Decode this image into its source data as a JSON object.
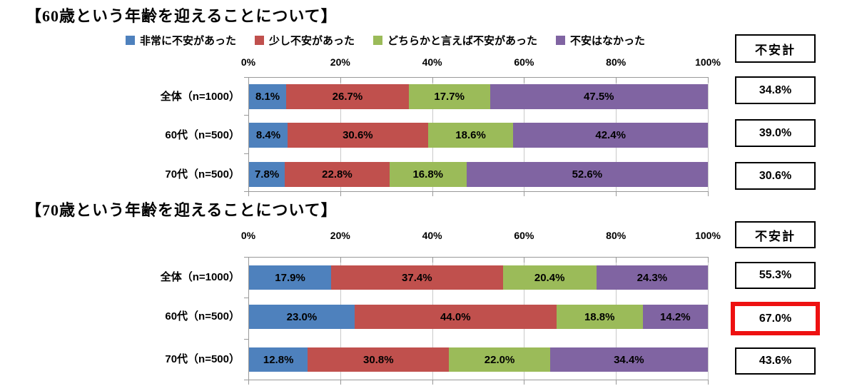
{
  "page": {
    "background": "#FFFFFF"
  },
  "legend": {
    "items": [
      {
        "label": "非常に不安があった",
        "color": "#4E81BD"
      },
      {
        "label": "少し不安があった",
        "color": "#C0504D"
      },
      {
        "label": "どちらかと言えば不安があった",
        "color": "#9BBB59"
      },
      {
        "label": "不安はなかった",
        "color": "#8064A2"
      }
    ]
  },
  "colors": {
    "grid": "#C9C9C9",
    "axis": "#999999",
    "box_border": "#000000",
    "highlight": "#EE1111",
    "bar_label": "#000000"
  },
  "chart_data": [
    {
      "type": "bar",
      "orientation": "horizontal",
      "stacked": true,
      "title": "【60歳という年齢を迎えることについて】",
      "axis_ticks": [
        "0%",
        "20%",
        "40%",
        "60%",
        "80%",
        "100%"
      ],
      "xlim": [
        0,
        100
      ],
      "grid": true,
      "legend_position": "top",
      "categories": [
        "全体（n=1000）",
        "60代（n=500）",
        "70代（n=500）"
      ],
      "series": [
        {
          "name": "非常に不安があった",
          "color": "#4E81BD",
          "values": [
            8.1,
            8.4,
            7.8
          ]
        },
        {
          "name": "少し不安があった",
          "color": "#C0504D",
          "values": [
            26.7,
            30.6,
            22.8
          ]
        },
        {
          "name": "どちらかと言えば不安があった",
          "color": "#9BBB59",
          "values": [
            17.7,
            18.6,
            16.8
          ]
        },
        {
          "name": "不安はなかった",
          "color": "#8064A2",
          "values": [
            47.5,
            42.4,
            52.6
          ]
        }
      ],
      "summary": {
        "header": "不安計",
        "values": [
          "34.8%",
          "39.0%",
          "30.6%"
        ],
        "highlight_index": -1
      }
    },
    {
      "type": "bar",
      "orientation": "horizontal",
      "stacked": true,
      "title": "【70歳という年齢を迎えることについて】",
      "axis_ticks": [
        "0%",
        "20%",
        "40%",
        "60%",
        "80%",
        "100%"
      ],
      "xlim": [
        0,
        100
      ],
      "grid": true,
      "legend_position": "none",
      "categories": [
        "全体（n=1000）",
        "60代（n=500）",
        "70代（n=500）"
      ],
      "series": [
        {
          "name": "非常に不安があった",
          "color": "#4E81BD",
          "values": [
            17.9,
            23.0,
            12.8
          ]
        },
        {
          "name": "少し不安があった",
          "color": "#C0504D",
          "values": [
            37.4,
            44.0,
            30.8
          ]
        },
        {
          "name": "どちらかと言えば不安があった",
          "color": "#9BBB59",
          "values": [
            20.4,
            18.8,
            22.0
          ]
        },
        {
          "name": "不安はなかった",
          "color": "#8064A2",
          "values": [
            24.3,
            14.2,
            34.4
          ]
        }
      ],
      "summary": {
        "header": "不安計",
        "values": [
          "55.3%",
          "67.0%",
          "43.6%"
        ],
        "highlight_index": 1
      }
    }
  ]
}
